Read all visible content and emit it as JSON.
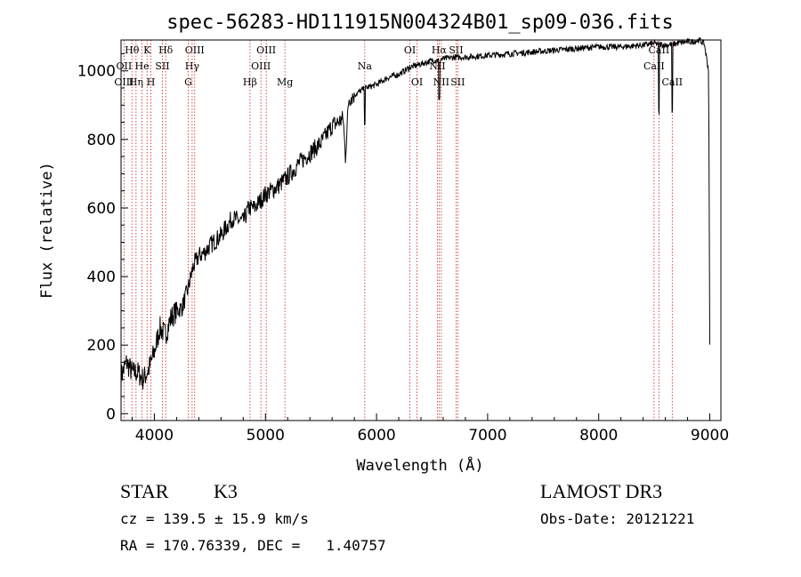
{
  "chart_data": {
    "type": "line",
    "title": "spec-56283-HD111915N004324B01_sp09-036.fits",
    "xlabel": "Wavelength (Å)",
    "ylabel": "Flux (relative)",
    "xlim": [
      3700,
      9100
    ],
    "ylim": [
      -20,
      1090
    ],
    "xticks": [
      4000,
      5000,
      6000,
      7000,
      8000,
      9000
    ],
    "yticks": [
      0,
      200,
      400,
      600,
      800,
      1000
    ],
    "grid": false,
    "series": [
      {
        "name": "spectrum",
        "color": "#000000",
        "x": [
          3700,
          3750,
          3800,
          3850,
          3900,
          3950,
          4000,
          4050,
          4100,
          4150,
          4200,
          4250,
          4300,
          4350,
          4400,
          4450,
          4500,
          4600,
          4700,
          4800,
          4850,
          4900,
          5000,
          5100,
          5200,
          5300,
          5400,
          5500,
          5600,
          5700,
          5720,
          5750,
          5800,
          5900,
          6000,
          6100,
          6200,
          6300,
          6400,
          6500,
          6600,
          6700,
          6800,
          7000,
          7200,
          7400,
          7600,
          7800,
          8000,
          8200,
          8400,
          8500,
          8600,
          8700,
          8800,
          8850,
          8900,
          8950,
          8990,
          9000
        ],
        "y": [
          110,
          150,
          120,
          120,
          100,
          130,
          180,
          250,
          230,
          280,
          300,
          310,
          360,
          430,
          460,
          470,
          490,
          520,
          570,
          560,
          600,
          600,
          640,
          660,
          690,
          730,
          760,
          790,
          840,
          860,
          750,
          920,
          930,
          950,
          960,
          980,
          990,
          1010,
          1020,
          1030,
          1035,
          1040,
          1040,
          1045,
          1050,
          1055,
          1060,
          1065,
          1070,
          1070,
          1075,
          1080,
          1075,
          1080,
          1085,
          1085,
          1090,
          1080,
          1000,
          200
        ]
      }
    ],
    "lines": [
      {
        "label": "Hθ",
        "x": 3798,
        "row": 1
      },
      {
        "label": "OII",
        "x": 3727,
        "row": 2
      },
      {
        "label": "OIII",
        "x": 3727,
        "row": 3
      },
      {
        "label": "K",
        "x": 3934,
        "row": 1
      },
      {
        "label": "He",
        "x": 3889,
        "row": 2
      },
      {
        "label": "Hη",
        "x": 3835,
        "row": 3
      },
      {
        "label": "Hδ",
        "x": 4102,
        "row": 1
      },
      {
        "label": "SII",
        "x": 4072,
        "row": 2
      },
      {
        "label": "H",
        "x": 3969,
        "row": 3
      },
      {
        "label": "OIII",
        "x": 4363,
        "row": 1
      },
      {
        "label": "Hγ",
        "x": 4340,
        "row": 2
      },
      {
        "label": "G",
        "x": 4305,
        "row": 3
      },
      {
        "label": "OIII",
        "x": 5007,
        "row": 1
      },
      {
        "label": "OIII",
        "x": 4959,
        "row": 2
      },
      {
        "label": "Hβ",
        "x": 4861,
        "row": 3
      },
      {
        "label": "Mg",
        "x": 5175,
        "row": 3
      },
      {
        "label": "Na",
        "x": 5894,
        "row": 2
      },
      {
        "label": "OI",
        "x": 6300,
        "row": 1
      },
      {
        "label": "OI",
        "x": 6364,
        "row": 3
      },
      {
        "label": "Hα",
        "x": 6563,
        "row": 1
      },
      {
        "label": "SII",
        "x": 6716,
        "row": 1
      },
      {
        "label": "NII",
        "x": 6548,
        "row": 2
      },
      {
        "label": "NII",
        "x": 6583,
        "row": 3
      },
      {
        "label": "SII",
        "x": 6731,
        "row": 3
      },
      {
        "label": "CaII",
        "x": 8542,
        "row": 1
      },
      {
        "label": "CaII",
        "x": 8498,
        "row": 2
      },
      {
        "label": "CaII",
        "x": 8662,
        "row": 3
      }
    ],
    "line_color": "#cc2222"
  },
  "info": {
    "class": "STAR",
    "subclass": "K3",
    "survey": "LAMOST DR3",
    "redshift": "cz = 139.5 ± 15.9 km/s",
    "obs_date": "Obs-Date: 20121221",
    "coords": "RA = 170.76339, DEC =   1.40757"
  }
}
